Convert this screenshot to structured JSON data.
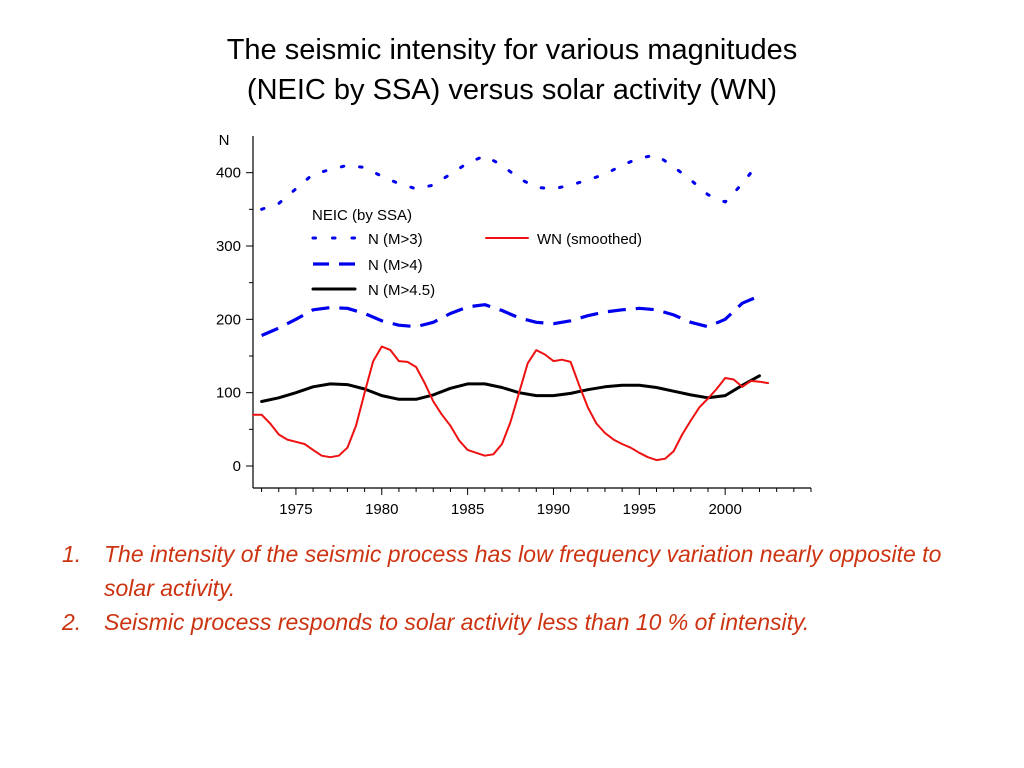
{
  "title": {
    "line1": "The seismic intensity for various magnitudes",
    "line2": "(NEIC by SSA) versus solar activity (WN)"
  },
  "conclusions": [
    {
      "number": "1.",
      "text": "The intensity of the seismic process has low frequency variation nearly opposite to solar activity."
    },
    {
      "number": "2.",
      "text": "Seismic process responds to solar activity less than 10 % of intensity."
    }
  ],
  "chart_data": {
    "type": "line",
    "ylabel": "N",
    "xlim": [
      1972.5,
      2005
    ],
    "ylim": [
      -30,
      450
    ],
    "xticks": [
      1975,
      1980,
      1985,
      1990,
      1995,
      2000
    ],
    "yticks": [
      0,
      100,
      200,
      300,
      400
    ],
    "legend": {
      "title": "NEIC (by SSA)",
      "placement": "upper-left"
    },
    "colors": {
      "m3": "#0000ee",
      "m4": "#0000ee",
      "m45": "#000000",
      "wn": "#ee1111"
    },
    "series": [
      {
        "id": "m3",
        "name": "N (M>3)",
        "style": "dotted",
        "x": [
          1973,
          1974,
          1975,
          1976,
          1977,
          1978,
          1979,
          1980,
          1981,
          1982,
          1983,
          1984,
          1985,
          1986,
          1987,
          1988,
          1989,
          1990,
          1991,
          1992,
          1993,
          1994,
          1995,
          1996,
          1997,
          1998,
          1999,
          2000,
          2001,
          2002
        ],
        "y": [
          350,
          358,
          378,
          398,
          404,
          410,
          407,
          395,
          385,
          378,
          383,
          398,
          413,
          423,
          410,
          392,
          380,
          378,
          383,
          390,
          398,
          410,
          420,
          424,
          408,
          390,
          370,
          360,
          385,
          415
        ]
      },
      {
        "id": "m4",
        "name": "N (M>4)",
        "style": "dashed",
        "x": [
          1973,
          1974,
          1975,
          1976,
          1977,
          1978,
          1979,
          1980,
          1981,
          1982,
          1983,
          1984,
          1985,
          1986,
          1987,
          1988,
          1989,
          1990,
          1991,
          1992,
          1993,
          1994,
          1995,
          1996,
          1997,
          1998,
          1999,
          2000,
          2001,
          2002
        ],
        "y": [
          178,
          188,
          200,
          213,
          216,
          215,
          208,
          198,
          192,
          190,
          196,
          208,
          217,
          220,
          212,
          202,
          196,
          194,
          198,
          205,
          210,
          213,
          215,
          213,
          206,
          196,
          190,
          200,
          222,
          232
        ]
      },
      {
        "id": "m45",
        "name": "N (M>4.5)",
        "style": "solid",
        "x": [
          1973,
          1974,
          1975,
          1976,
          1977,
          1978,
          1979,
          1980,
          1981,
          1982,
          1983,
          1984,
          1985,
          1986,
          1987,
          1988,
          1989,
          1990,
          1991,
          1992,
          1993,
          1994,
          1995,
          1996,
          1997,
          1998,
          1999,
          2000,
          2001,
          2002
        ],
        "y": [
          88,
          93,
          100,
          108,
          112,
          111,
          105,
          96,
          91,
          91,
          97,
          106,
          112,
          112,
          107,
          100,
          96,
          96,
          99,
          104,
          108,
          110,
          110,
          107,
          102,
          97,
          93,
          96,
          110,
          123
        ]
      },
      {
        "id": "wn",
        "name": "WN (smoothed)",
        "style": "solid",
        "x": [
          1972.5,
          1973,
          1973.5,
          1974,
          1974.5,
          1975,
          1975.5,
          1976,
          1976.5,
          1977,
          1977.5,
          1978,
          1978.5,
          1979,
          1979.5,
          1980,
          1980.5,
          1981,
          1981.5,
          1982,
          1982.5,
          1983,
          1983.5,
          1984,
          1984.5,
          1985,
          1985.5,
          1986,
          1986.5,
          1987,
          1987.5,
          1988,
          1988.5,
          1989,
          1989.5,
          1990,
          1990.5,
          1991,
          1991.5,
          1992,
          1992.5,
          1993,
          1993.5,
          1994,
          1994.5,
          1995,
          1995.5,
          1996,
          1996.5,
          1997,
          1997.5,
          1998,
          1998.5,
          1999,
          1999.5,
          2000,
          2000.5,
          2001,
          2001.5,
          2002,
          2002.5
        ],
        "y": [
          70,
          70,
          58,
          43,
          36,
          33,
          30,
          22,
          14,
          12,
          14,
          25,
          55,
          100,
          143,
          163,
          158,
          143,
          142,
          135,
          113,
          88,
          70,
          55,
          35,
          22,
          18,
          14,
          16,
          30,
          60,
          100,
          140,
          158,
          152,
          143,
          145,
          142,
          110,
          80,
          58,
          45,
          36,
          30,
          25,
          18,
          12,
          8,
          10,
          20,
          43,
          62,
          80,
          92,
          105,
          120,
          118,
          108,
          116,
          115,
          113
        ]
      }
    ]
  }
}
